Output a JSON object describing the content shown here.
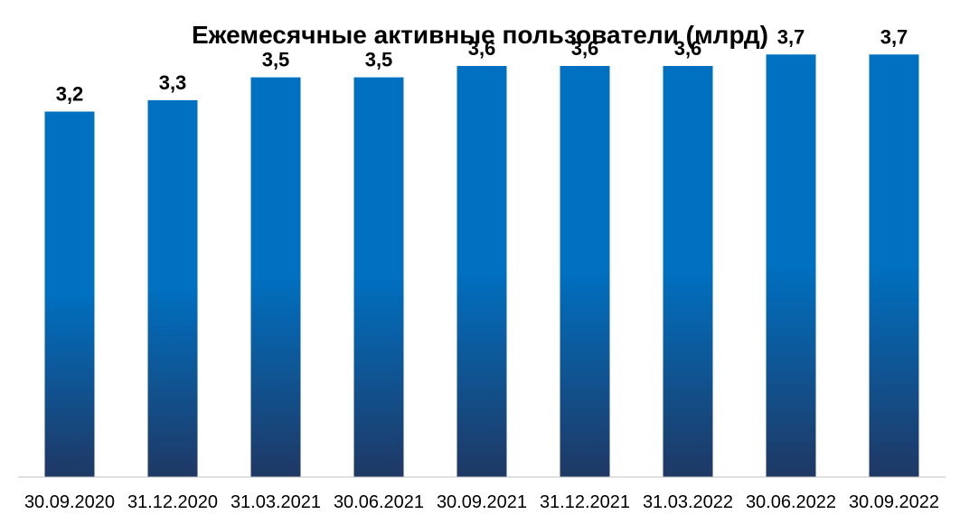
{
  "chart_data": {
    "type": "bar",
    "title": "Ежемесячные активные пользователи (млрд)",
    "categories": [
      "30.09.2020",
      "31.12.2020",
      "31.03.2021",
      "30.06.2021",
      "30.09.2021",
      "31.12.2021",
      "31.03.2022",
      "30.06.2022",
      "30.09.2022"
    ],
    "values": [
      3.2,
      3.3,
      3.5,
      3.5,
      3.6,
      3.6,
      3.6,
      3.7,
      3.7
    ],
    "data_labels": [
      "3,2",
      "3,3",
      "3,5",
      "3,5",
      "3,6",
      "3,6",
      "3,6",
      "3,7",
      "3,7"
    ],
    "xlabel": "",
    "ylabel": "",
    "ylim": [
      0,
      4.1
    ],
    "grid": false,
    "legend": "none",
    "colors": {
      "bar_top": "#0070C0",
      "bar_bottom": "#1F3864",
      "axis": "#BFBFBF"
    }
  }
}
